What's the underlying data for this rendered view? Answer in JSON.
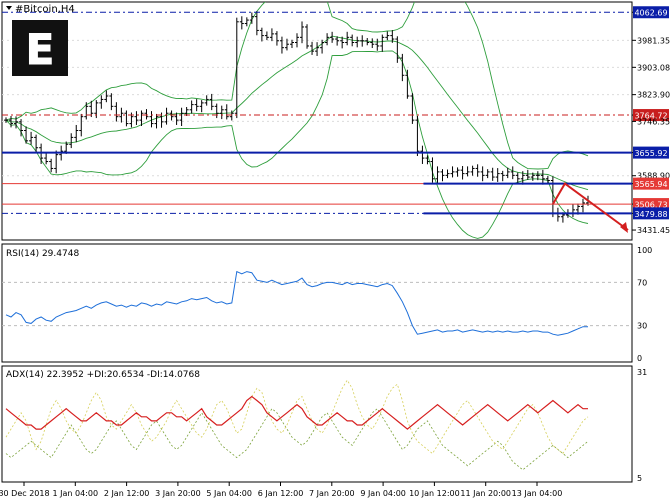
{
  "window_title": "#Bitcoin,H4",
  "logo_letter": "E",
  "price_panel": {
    "ticks": [
      {
        "v": 4062.69,
        "label": "4062.69",
        "box": true
      },
      {
        "v": 3981.35,
        "label": "3981.35"
      },
      {
        "v": 3903.08,
        "label": "3903.08"
      },
      {
        "v": 3823.9,
        "label": "3823.90"
      },
      {
        "v": 3764.72,
        "label": "3764.72",
        "box": true,
        "color": "#c81e1e"
      },
      {
        "v": 3746.35,
        "label": "3746.35"
      },
      {
        "v": 3655.92,
        "label": "3655.92",
        "box": true
      },
      {
        "v": 3588.9,
        "label": "3588.90"
      },
      {
        "v": 3565.94,
        "label": "3565.94",
        "box": true,
        "color": "#e53935"
      },
      {
        "v": 3506.73,
        "label": "3506.73",
        "box": true,
        "color": "#e53935"
      },
      {
        "v": 3479.88,
        "label": "3479.88",
        "box": true
      },
      {
        "v": 3431.45,
        "label": "3431.45"
      }
    ]
  },
  "rsi_panel": {
    "title": "RSI(14) 29.4748",
    "levels": [
      "100",
      "70",
      "30",
      "0"
    ]
  },
  "adx_panel": {
    "title": "ADX(14) 22.3952 +DI:20.6534 -DI:14.0768",
    "levels": [
      "31",
      "5"
    ]
  },
  "time_axis": [
    "30 Dec 2018",
    "1 Jan 04:00",
    "2 Jan 12:00",
    "3 Jan 20:00",
    "5 Jan 04:00",
    "6 Jan 12:00",
    "7 Jan 20:00",
    "9 Jan 04:00",
    "10 Jan 12:00",
    "11 Jan 20:00",
    "13 Jan 04:00"
  ],
  "colors": {
    "bollinger": "#2e9e3c",
    "support_line": "#0a1ea8",
    "resistance_line": "#e53935",
    "rsi_line": "#1e6fd9",
    "adx_line": "#d61f1f",
    "plus_di": "#d6cf58",
    "minus_di": "#7ba23a",
    "arrow": "#d41f1f"
  },
  "chart_data": {
    "type": "candlestick",
    "title": "#Bitcoin,H4",
    "y_range": [
      3420,
      4075
    ],
    "horizontal_levels": [
      {
        "value": 4062.69,
        "style": "dash-dot",
        "color": "#0a1ea8"
      },
      {
        "value": 3764.72,
        "style": "dash-dot",
        "color": "#c81e1e"
      },
      {
        "value": 3655.92,
        "style": "solid",
        "color": "#0a1ea8"
      },
      {
        "value": 3565.94,
        "style": "solid",
        "color": "#e53935"
      },
      {
        "value": 3506.73,
        "style": "solid",
        "color": "#e53935"
      },
      {
        "value": 3479.88,
        "style": "dash-dot",
        "color": "#0a1ea8"
      }
    ],
    "support_segments": [
      {
        "value": 3565.94,
        "from_bar": 84
      },
      {
        "value": 3479.88,
        "from_bar": 84
      }
    ],
    "close_series": [
      3750,
      3740,
      3745,
      3720,
      3690,
      3700,
      3670,
      3640,
      3630,
      3610,
      3650,
      3660,
      3680,
      3700,
      3720,
      3760,
      3790,
      3770,
      3800,
      3810,
      3820,
      3790,
      3760,
      3770,
      3740,
      3760,
      3750,
      3770,
      3760,
      3740,
      3760,
      3745,
      3770,
      3760,
      3750,
      3770,
      3780,
      3795,
      3790,
      3800,
      3810,
      3790,
      3770,
      3780,
      3760,
      3770,
      4035,
      4030,
      4040,
      4050,
      4010,
      3995,
      3990,
      4000,
      3980,
      3960,
      3970,
      3975,
      3990,
      4020,
      3965,
      3950,
      3960,
      3975,
      3990,
      3985,
      3980,
      3975,
      3990,
      3975,
      3980,
      3980,
      3975,
      3970,
      3965,
      3990,
      3995,
      3985,
      3930,
      3880,
      3820,
      3750,
      3660,
      3640,
      3630,
      3580,
      3600,
      3590,
      3595,
      3600,
      3605,
      3595,
      3600,
      3610,
      3600,
      3590,
      3600,
      3585,
      3595,
      3590,
      3600,
      3590,
      3580,
      3590,
      3585,
      3590,
      3590,
      3580,
      3575,
      3480,
      3470,
      3475,
      3480,
      3490,
      3500,
      3510,
      3515
    ],
    "rsi": {
      "range": [
        0,
        100
      ],
      "levels": [
        70,
        30
      ],
      "values": [
        40,
        38,
        42,
        40,
        33,
        32,
        36,
        38,
        35,
        34,
        38,
        40,
        42,
        43,
        44,
        46,
        48,
        46,
        49,
        51,
        52,
        50,
        48,
        49,
        47,
        49,
        48,
        51,
        50,
        48,
        50,
        49,
        52,
        51,
        50,
        52,
        53,
        55,
        54,
        55,
        56,
        53,
        51,
        52,
        50,
        51,
        80,
        78,
        80,
        79,
        72,
        71,
        70,
        72,
        70,
        68,
        69,
        70,
        71,
        74,
        68,
        66,
        67,
        69,
        70,
        70,
        69,
        68,
        70,
        68,
        69,
        69,
        68,
        67,
        66,
        68,
        69,
        67,
        60,
        52,
        42,
        30,
        22,
        23,
        24,
        25,
        26,
        24,
        25,
        25,
        26,
        24,
        25,
        26,
        25,
        24,
        25,
        24,
        25,
        24,
        25,
        24,
        24,
        25,
        24,
        25,
        25,
        24,
        24,
        22,
        21,
        22,
        23,
        25,
        27,
        29,
        29
      ]
    },
    "adx": {
      "range": [
        5,
        31
      ],
      "adx": [
        22,
        21,
        20,
        19,
        18,
        18,
        17,
        17,
        18,
        19,
        20,
        21,
        22,
        21,
        20,
        19,
        19,
        20,
        21,
        20,
        19,
        19,
        18,
        18,
        19,
        20,
        21,
        20,
        20,
        19,
        19,
        20,
        21,
        21,
        20,
        20,
        19,
        20,
        21,
        22,
        20,
        19,
        18,
        18,
        19,
        20,
        21,
        22,
        24,
        25,
        24,
        23,
        21,
        20,
        19,
        20,
        21,
        22,
        23,
        22,
        20,
        19,
        18,
        18,
        19,
        20,
        21,
        20,
        19,
        19,
        18,
        18,
        19,
        20,
        21,
        22,
        21,
        20,
        19,
        18,
        17,
        18,
        19,
        20,
        21,
        22,
        23,
        22,
        21,
        20,
        19,
        18,
        19,
        20,
        21,
        22,
        23,
        22,
        21,
        20,
        19,
        20,
        21,
        22,
        23,
        22,
        21,
        22,
        23,
        24,
        23,
        22,
        21,
        22,
        23,
        22,
        22
      ],
      "plus_di": [
        15,
        17,
        19,
        21,
        19,
        15,
        12,
        14,
        18,
        22,
        24,
        22,
        19,
        17,
        16,
        18,
        21,
        24,
        26,
        24,
        20,
        18,
        17,
        19,
        21,
        23,
        21,
        18,
        16,
        14,
        15,
        17,
        19,
        22,
        24,
        22,
        20,
        18,
        16,
        15,
        17,
        20,
        23,
        24,
        22,
        19,
        16,
        17,
        21,
        25,
        27,
        26,
        22,
        19,
        17,
        16,
        18,
        21,
        24,
        25,
        22,
        19,
        17,
        16,
        18,
        21,
        24,
        27,
        29,
        27,
        23,
        20,
        18,
        17,
        19,
        22,
        25,
        27,
        28,
        24,
        19,
        16,
        14,
        13,
        12,
        11,
        13,
        15,
        17,
        19,
        21,
        23,
        24,
        22,
        20,
        18,
        16,
        14,
        13,
        12,
        14,
        16,
        18,
        20,
        22,
        23,
        21,
        18,
        15,
        13,
        12,
        11,
        13,
        15,
        17,
        19,
        20
      ],
      "minus_di": [
        11,
        10,
        11,
        12,
        13,
        14,
        13,
        12,
        11,
        10,
        12,
        14,
        16,
        18,
        16,
        14,
        12,
        11,
        12,
        14,
        16,
        18,
        19,
        17,
        15,
        13,
        12,
        14,
        16,
        18,
        19,
        17,
        15,
        13,
        12,
        13,
        15,
        17,
        19,
        21,
        19,
        17,
        15,
        13,
        12,
        11,
        10,
        11,
        12,
        14,
        16,
        18,
        20,
        22,
        21,
        19,
        17,
        15,
        14,
        13,
        14,
        16,
        18,
        20,
        21,
        19,
        17,
        15,
        14,
        13,
        15,
        17,
        19,
        21,
        22,
        20,
        18,
        16,
        14,
        12,
        13,
        15,
        17,
        18,
        19,
        17,
        15,
        13,
        12,
        11,
        10,
        9,
        8,
        9,
        10,
        11,
        12,
        13,
        14,
        13,
        11,
        9,
        8,
        7,
        8,
        9,
        10,
        11,
        12,
        13,
        12,
        11,
        10,
        11,
        12,
        13,
        14
      ]
    },
    "projection_arrow": {
      "from_bar": 109,
      "points": [
        3506.73,
        3565.94,
        3431.45
      ]
    }
  }
}
